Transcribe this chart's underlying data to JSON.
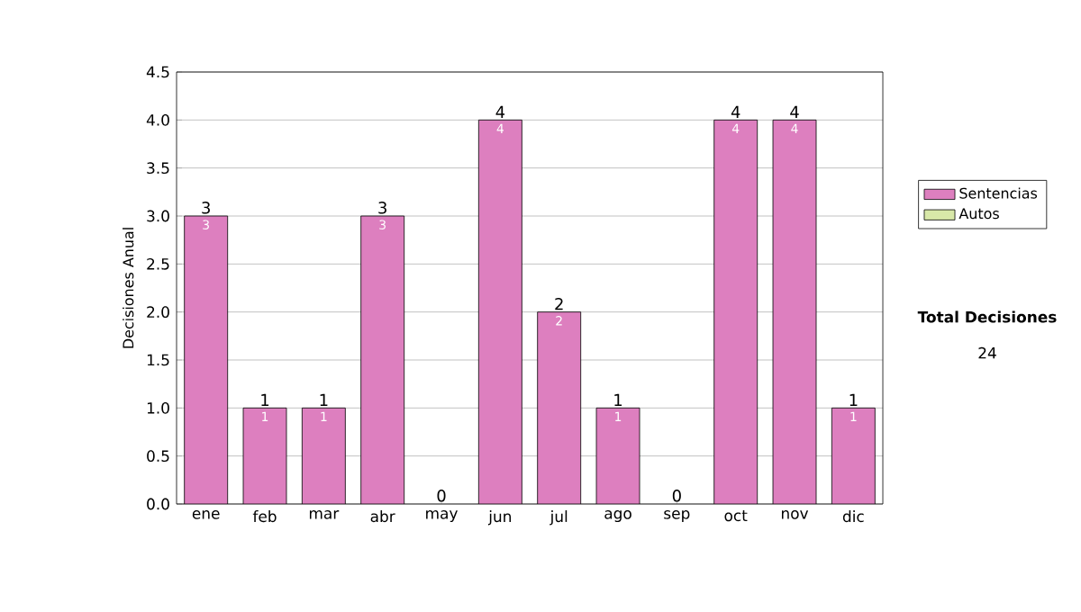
{
  "chart_data": {
    "type": "bar",
    "stacked": true,
    "ylabel": "Decisiones Anual",
    "categories": [
      "ene",
      "feb",
      "mar",
      "abr",
      "may",
      "jun",
      "jul",
      "ago",
      "sep",
      "oct",
      "nov",
      "dic"
    ],
    "series": [
      {
        "name": "Sentencias",
        "color": "#dd7fbf",
        "values": [
          3,
          1,
          1,
          3,
          0,
          4,
          2,
          1,
          0,
          4,
          4,
          1
        ],
        "value_labels": [
          "3",
          "1",
          "1",
          "3",
          null,
          "4",
          "2",
          "1",
          null,
          "4",
          "4",
          "1"
        ]
      },
      {
        "name": "Autos",
        "color": "#d8e8a8",
        "values": [
          0,
          0,
          0,
          0,
          0,
          0,
          0,
          0,
          0,
          0,
          0,
          0
        ]
      }
    ],
    "totals": [
      "3",
      "1",
      "1",
      "3",
      "0",
      "4",
      "2",
      "1",
      "0",
      "4",
      "4",
      "1"
    ],
    "ylim": [
      0,
      4.5
    ],
    "yticks": [
      {
        "value": 0,
        "label": "0.0"
      },
      {
        "value": 0.5,
        "label": "0.5"
      },
      {
        "value": 1,
        "label": "1.0"
      },
      {
        "value": 1.5,
        "label": "1.5"
      },
      {
        "value": 2,
        "label": "2.0"
      },
      {
        "value": 2.5,
        "label": "2.5"
      },
      {
        "value": 3,
        "label": "3.0"
      },
      {
        "value": 3.5,
        "label": "3.5"
      },
      {
        "value": 4,
        "label": "4.0"
      },
      {
        "value": 4.5,
        "label": "4.5"
      }
    ],
    "grid": "y",
    "legend": "right",
    "annotations": [
      "Total Decisiones",
      "24"
    ]
  }
}
